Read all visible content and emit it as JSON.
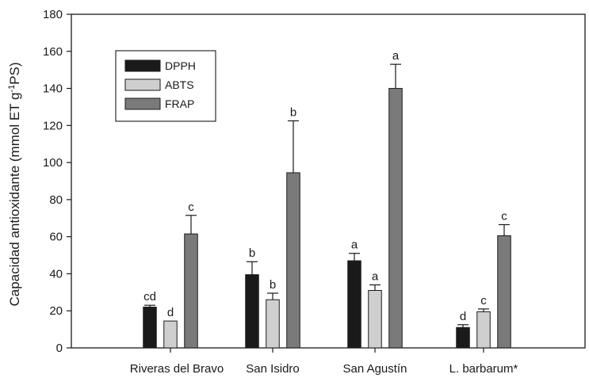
{
  "chart_data": {
    "type": "bar",
    "categories": [
      "Riveras del Bravo",
      "San Isidro",
      "San Agustín",
      "L. barbarum*"
    ],
    "ylabel": "Capacidad antioxidante (mmol ET g-1PS)",
    "ylabel_parts": {
      "main": "Capacidad antioxidante (mmol ET g",
      "sup": "-1",
      "tail": "PS)"
    },
    "xlabel": "",
    "ylim": [
      0,
      180
    ],
    "yticks": [
      0,
      20,
      40,
      60,
      80,
      100,
      120,
      140,
      160,
      180
    ],
    "grid": false,
    "legend_position": "top-left",
    "series": [
      {
        "name": "DPPH",
        "color": "#1a1a1a",
        "values": [
          22,
          39.5,
          47,
          11
        ],
        "errors": [
          1,
          7,
          4,
          1.5
        ],
        "labels": [
          "cd",
          "b",
          "a",
          "d"
        ]
      },
      {
        "name": "ABTS",
        "color": "#cfcfcf",
        "values": [
          14.5,
          26,
          31,
          19.5
        ],
        "errors": [
          0,
          3.5,
          3,
          1.5
        ],
        "labels": [
          "d",
          "b",
          "a",
          "c"
        ]
      },
      {
        "name": "FRAP",
        "color": "#7a7a7a",
        "values": [
          61.5,
          94.5,
          140,
          60.5
        ],
        "errors": [
          10,
          28,
          13,
          6
        ],
        "labels": [
          "c",
          "b",
          "a",
          "c"
        ]
      }
    ]
  }
}
